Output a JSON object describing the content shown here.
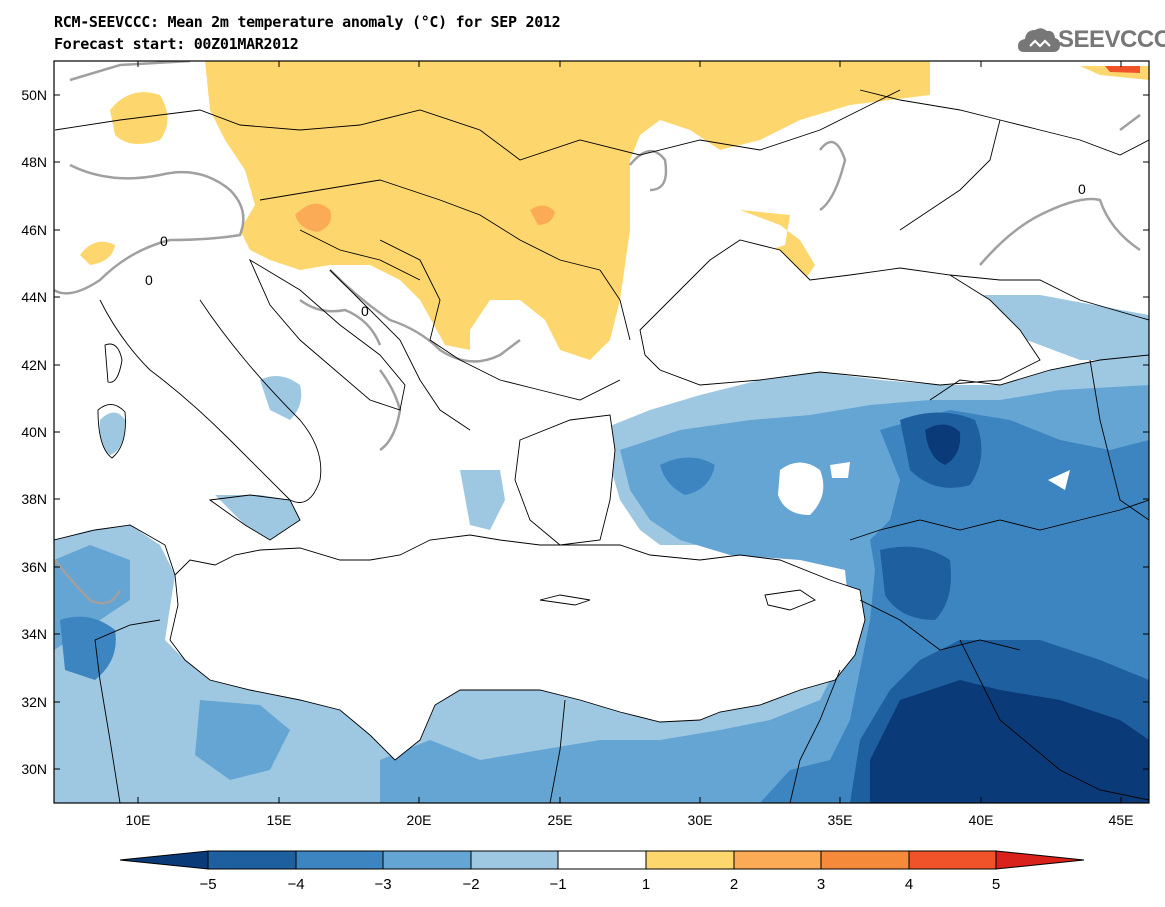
{
  "header": {
    "title": "RCM-SEEVCCC: Mean 2m temperature anomaly (°C) for SEP 2012",
    "subtitle": "Forecast start: 00Z01MAR2012",
    "logo_text": "SEEVCCC"
  },
  "map": {
    "lon_range": [
      7,
      46
    ],
    "lat_range": [
      29,
      51
    ],
    "lat_ticks": [
      "30N",
      "32N",
      "34N",
      "36N",
      "38N",
      "40N",
      "42N",
      "44N",
      "46N",
      "48N",
      "50N"
    ],
    "lon_ticks": [
      "10E",
      "15E",
      "20E",
      "25E",
      "30E",
      "35E",
      "40E",
      "45E"
    ],
    "contour_label": "0",
    "colors": {
      "land_neutral": "#ffffff",
      "warm_1_2": "#fdd76e",
      "warm_2_3": "#fbab55",
      "warm_4_5": "#f0522a",
      "cold_1_2": "#9ec8e2",
      "cold_2_3": "#65a5d4",
      "cold_3_4": "#3d85c0",
      "cold_4_5": "#1e5fa0",
      "cold_below_5": "#0a3a78",
      "border": "#000000",
      "contour": "#a0a0a0"
    }
  },
  "colorbar": {
    "labels": [
      "−5",
      "−4",
      "−3",
      "−2",
      "−1",
      "1",
      "2",
      "3",
      "4",
      "5"
    ],
    "colors": [
      "#0a3a78",
      "#1e5fa0",
      "#3d85c0",
      "#65a5d4",
      "#9ec8e2",
      "#ffffff",
      "#fdd76e",
      "#fbab55",
      "#f58a3b",
      "#f0522a",
      "#d9221c"
    ]
  }
}
